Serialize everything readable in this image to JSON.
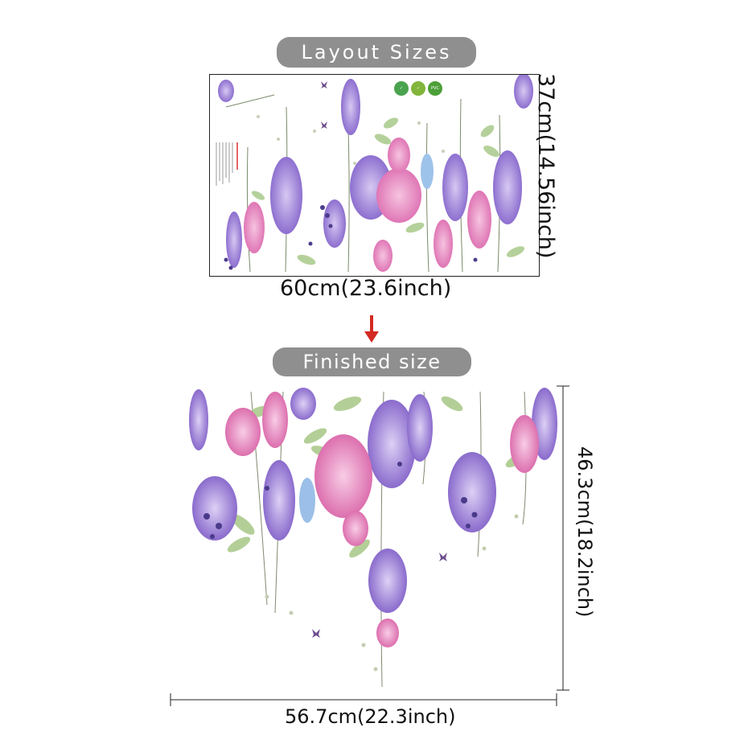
{
  "labels": {
    "layout_sizes": "Layout Sizes",
    "finished_size": "Finished size",
    "layout_width": "60cm(23.6inch)",
    "layout_height": "37cm(14.56inch)",
    "finished_width": "56.7cm(22.3inch)",
    "finished_height": "46.3cm(18.2inch)"
  },
  "colors": {
    "pill": "#8f8f8f",
    "arrow": "#d32a23",
    "lavender": "#9b7fd4",
    "purple": "#6a4fb3",
    "pink": "#e58ac0",
    "leaf": "#9cc27a",
    "blue": "#8fb7e6"
  },
  "icons": [
    "eco-badge",
    "quality-badge",
    "pvc-badge"
  ]
}
